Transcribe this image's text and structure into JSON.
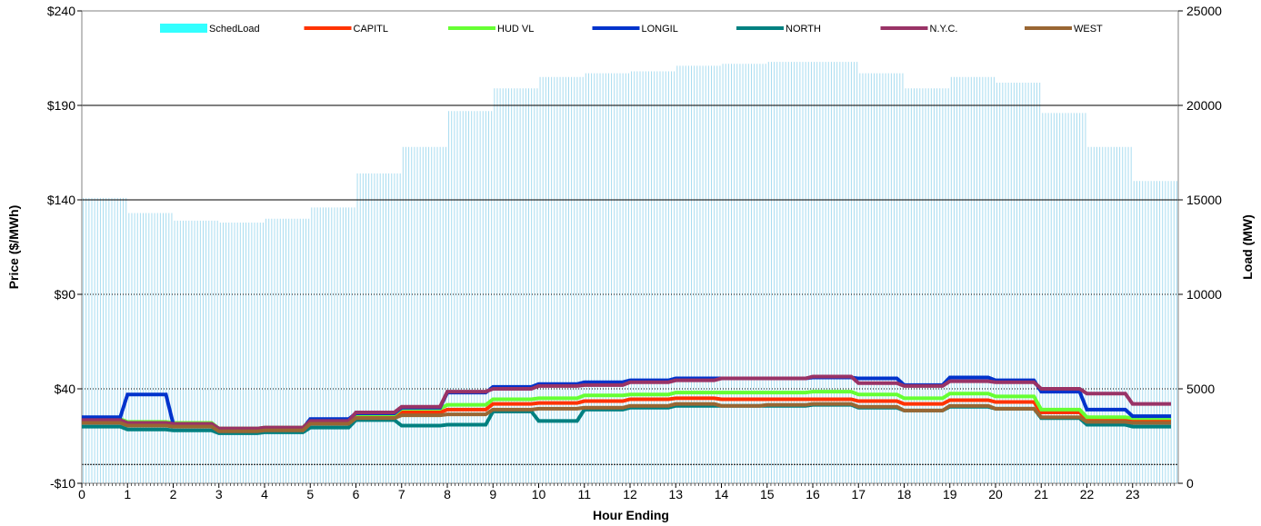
{
  "chart_data": {
    "type": "line",
    "xlabel": "Hour Ending",
    "ylabel_left": "Price ($/MWh)",
    "ylabel_right": "Load (MW)",
    "y_left": {
      "range": [
        -10,
        240
      ],
      "ticks": [
        -10,
        40,
        90,
        140,
        190,
        240
      ],
      "tick_labels": [
        "-$10",
        "$40",
        "$90",
        "$140",
        "$190",
        "$240"
      ]
    },
    "y_right": {
      "range": [
        0,
        25000
      ],
      "ticks": [
        0,
        5000,
        10000,
        15000,
        20000,
        25000
      ],
      "tick_labels": [
        "0",
        "5000",
        "10000",
        "15000",
        "20000",
        "25000"
      ]
    },
    "x_range": [
      0,
      24
    ],
    "x_ticks": [
      0,
      1,
      2,
      3,
      4,
      5,
      6,
      7,
      8,
      9,
      10,
      11,
      12,
      13,
      14,
      15,
      16,
      17,
      18,
      19,
      20,
      21,
      22,
      23
    ],
    "x_tick_labels": [
      "0",
      "1",
      "2",
      "3",
      "4",
      "5",
      "6",
      "7",
      "8",
      "9",
      "10",
      "11",
      "12",
      "13",
      "14",
      "15",
      "16",
      "17",
      "18",
      "19",
      "20",
      "21",
      "22",
      "23"
    ],
    "grid": "horizontal",
    "legend_position": "top",
    "load_series": {
      "name": "SchedLoad",
      "color": "#a8dcf0",
      "legend_color": "#33ffff",
      "values": [
        15100,
        14300,
        13900,
        13800,
        14000,
        14600,
        16400,
        17800,
        19700,
        20900,
        21500,
        21700,
        21800,
        22100,
        22200,
        22300,
        22300,
        21700,
        20900,
        21500,
        21200,
        19600,
        17800,
        16000
      ]
    },
    "series": [
      {
        "name": "CAPITL",
        "color": "#ff3300",
        "values": [
          23.5,
          22,
          21.5,
          18.5,
          19,
          22.5,
          25,
          27.5,
          29,
          32,
          32.5,
          33.5,
          34.5,
          35,
          34.5,
          34.5,
          34.5,
          33.5,
          32,
          34,
          33,
          27.5,
          24,
          23.5
        ]
      },
      {
        "name": "HUD VL",
        "color": "#66ff33",
        "values": [
          24,
          22.5,
          22,
          19,
          19.5,
          23.5,
          26.5,
          29.5,
          31.5,
          34.5,
          35,
          36.5,
          37,
          38,
          38,
          38,
          38.5,
          37,
          35,
          37.5,
          36,
          29,
          25,
          24.5
        ]
      },
      {
        "name": "LONGIL",
        "color": "#0033cc",
        "values": [
          25,
          37,
          21.5,
          18.5,
          19,
          24,
          27,
          30,
          38,
          41,
          42.5,
          43.5,
          44.5,
          45.5,
          45.5,
          45.5,
          46,
          45.5,
          42,
          46,
          44.5,
          38.5,
          29,
          25.5
        ]
      },
      {
        "name": "NORTH",
        "color": "#008080",
        "values": [
          20,
          18.5,
          18,
          16.5,
          17,
          19.5,
          23.5,
          20.5,
          21,
          28,
          23,
          29,
          30,
          31,
          31,
          31,
          31.5,
          30,
          28.5,
          30.5,
          29.5,
          24.5,
          21,
          20
        ]
      },
      {
        "name": "N.Y.C.",
        "color": "#993366",
        "values": [
          23.5,
          22,
          21.5,
          19,
          19.5,
          23,
          27.5,
          30.5,
          38.5,
          40,
          41.5,
          42,
          43.5,
          44.5,
          45.5,
          45.5,
          46.5,
          43,
          41.5,
          44,
          43.5,
          40,
          37.5,
          32
        ]
      },
      {
        "name": "WEST",
        "color": "#996633",
        "values": [
          22,
          20.5,
          20,
          17.5,
          18,
          21.5,
          24.5,
          26,
          26.5,
          29,
          29.5,
          30,
          31,
          32,
          31,
          31.5,
          32,
          30.5,
          28.5,
          31,
          29.5,
          25,
          22.5,
          22
        ]
      }
    ]
  }
}
